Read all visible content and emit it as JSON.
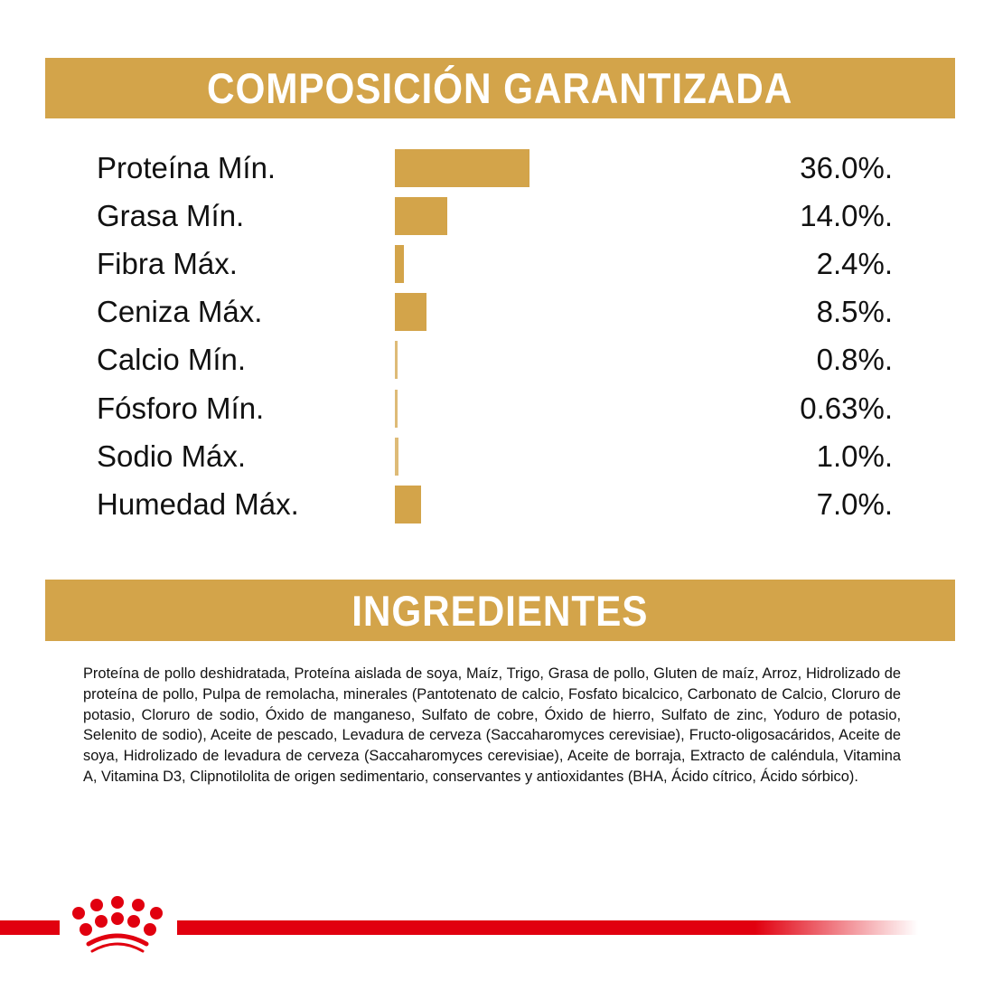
{
  "composition": {
    "title": "COMPOSICIÓN GARANTIZADA"
  },
  "chart_data": {
    "type": "bar",
    "orientation": "horizontal",
    "categories": [
      "Proteína Mín.",
      "Grasa Mín.",
      "Fibra Máx.",
      "Ceniza Máx.",
      "Calcio Mín.",
      "Fósforo Mín.",
      "Sodio Máx.",
      "Humedad Máx."
    ],
    "values": [
      36.0,
      14.0,
      2.4,
      8.5,
      0.8,
      0.63,
      1.0,
      7.0
    ],
    "value_labels": [
      "36.0%.",
      "14.0%.",
      "2.4%.",
      "8.5%.",
      "0.8%.",
      "0.63%.",
      "1.0%.",
      "7.0%."
    ],
    "bar_color": "#D3A44A",
    "grid": false
  },
  "ingredients": {
    "title": "INGREDIENTES",
    "text": "Proteína de pollo deshidratada, Proteína aislada de soya, Maíz, Trigo, Grasa de pollo, Gluten de maíz, Arroz, Hidrolizado de proteína de pollo, Pulpa de remolacha, minerales (Pantotenato de calcio, Fosfato bicalcico, Carbonato de Calcio, Cloruro de potasio, Cloruro de sodio, Óxido de manganeso, Sulfato de cobre, Óxido de hierro, Sulfato de zinc, Yoduro de potasio, Selenito de sodio), Aceite de pescado, Levadura de cerveza (Saccaharomyces cerevisiae), Fructo-oligosacáridos, Aceite de soya, Hidrolizado de levadura de cerveza (Saccaharomyces cerevisiae), Aceite de borraja, Extracto de caléndula, Vitamina A, Vitamina D3, Clipnotilolita de origen sedimentario, conservantes y antioxidantes (BHA, Ácido cítrico, Ácido sórbico)."
  },
  "footer": {
    "logo_icon": "crown-logo-icon",
    "accent_color": "#E1000F"
  }
}
